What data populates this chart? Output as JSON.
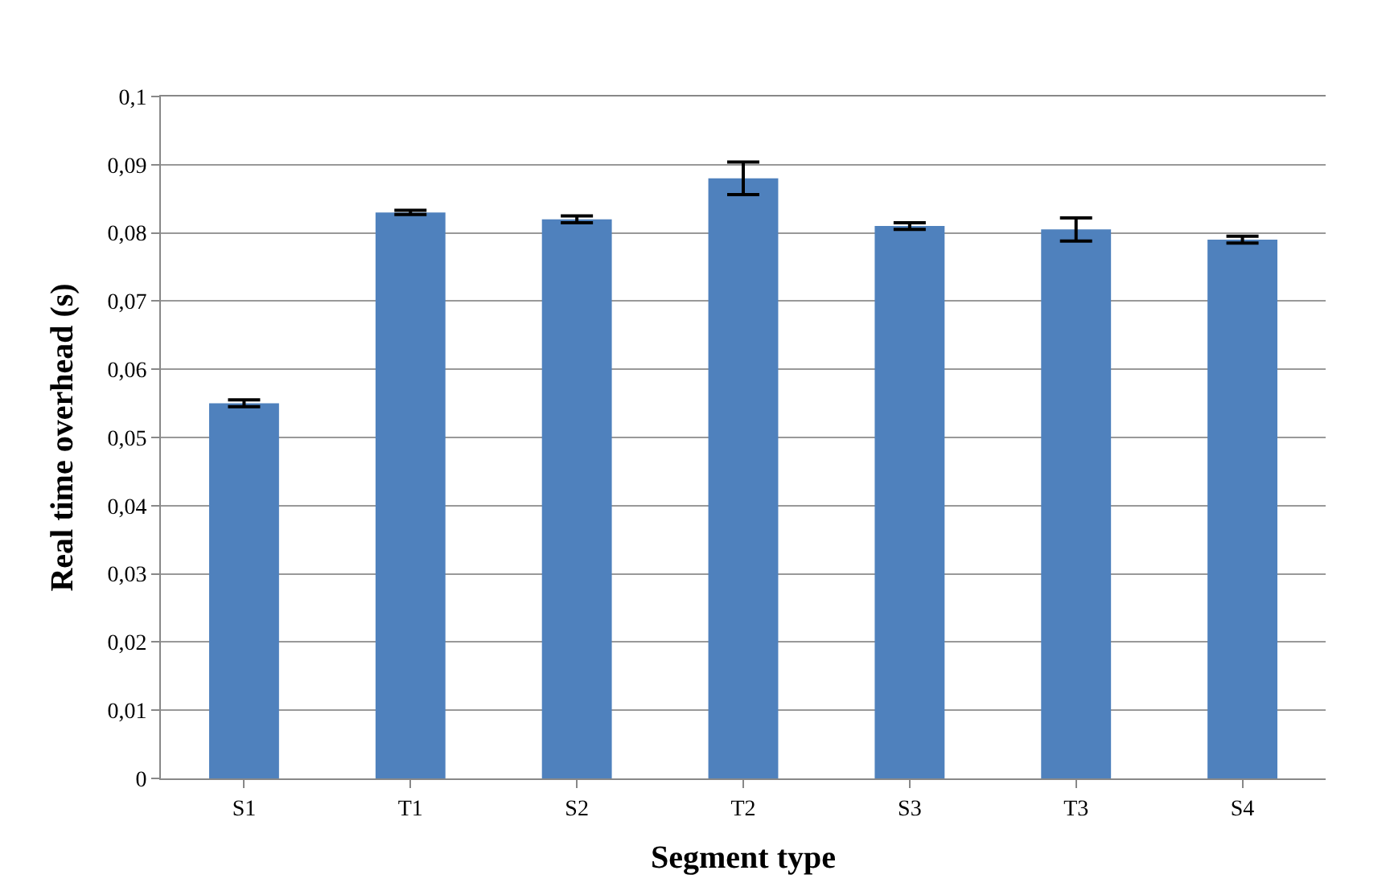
{
  "chart_data": {
    "type": "bar",
    "xlabel": "Segment type",
    "ylabel": "Real time overhead (s)",
    "categories": [
      "S1",
      "T1",
      "S2",
      "T2",
      "S3",
      "T3",
      "S4"
    ],
    "series": [
      {
        "color": "#4f81bd",
        "values": [
          0.055,
          0.083,
          0.082,
          0.088,
          0.081,
          0.0805,
          0.079
        ],
        "errors": [
          0.0005,
          0.0003,
          0.0005,
          0.0024,
          0.0005,
          0.0017,
          0.0005
        ]
      }
    ],
    "ylim": [
      0,
      0.1
    ],
    "yticks": [
      0,
      {
        "value": 0.01,
        "label": "0,01"
      },
      {
        "value": 0.02,
        "label": "0,02"
      },
      {
        "value": 0.03,
        "label": "0,03"
      },
      {
        "value": 0.04,
        "label": "0,04"
      },
      {
        "value": 0.05,
        "label": "0,05"
      },
      {
        "value": 0.06,
        "label": "0,06"
      },
      {
        "value": 0.07,
        "label": "0,07"
      },
      {
        "value": 0.08,
        "label": "0,08"
      },
      {
        "value": 0.09,
        "label": "0,09"
      },
      {
        "value": 0.1,
        "label": "0,1"
      }
    ],
    "grid": "y"
  }
}
